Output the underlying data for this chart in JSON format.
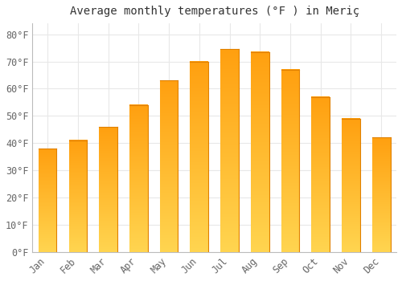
{
  "title": "Average monthly temperatures (°F ) in Meriç",
  "months": [
    "Jan",
    "Feb",
    "Mar",
    "Apr",
    "May",
    "Jun",
    "Jul",
    "Aug",
    "Sep",
    "Oct",
    "Nov",
    "Dec"
  ],
  "values": [
    38,
    41,
    46,
    54,
    63,
    70,
    74.5,
    73.5,
    67,
    57,
    49,
    42
  ],
  "bar_color_light": "#FFD060",
  "bar_color_dark": "#FFA010",
  "bar_edge_color": "#E08000",
  "yticks": [
    0,
    10,
    20,
    30,
    40,
    50,
    60,
    70,
    80
  ],
  "ytick_labels": [
    "0°F",
    "10°F",
    "20°F",
    "30°F",
    "40°F",
    "50°F",
    "60°F",
    "70°F",
    "80°F"
  ],
  "ylim": [
    0,
    84
  ],
  "background_color": "#ffffff",
  "grid_color": "#e8e8e8",
  "title_fontsize": 10,
  "tick_fontsize": 8.5,
  "font_family": "DejaVu Sans Mono"
}
